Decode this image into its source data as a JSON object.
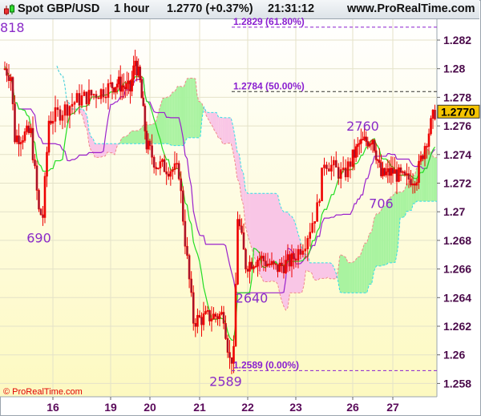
{
  "header": {
    "symbol": "Spot GBP/USD",
    "timeframe": "1 hour",
    "last": "1.2770 (+0.37%)",
    "time": "21:31:12",
    "site": "www.ProRealTime.com",
    "icon": "candlestick-icon"
  },
  "footer": {
    "copyright": "© ProRealTime.com"
  },
  "colors": {
    "candle": "#ee0000",
    "tenkan": "#22dd22",
    "kijun": "#9b22cc",
    "cloud_bull": "#a9f3a0",
    "cloud_bear": "#f9c6e6",
    "fib": "#8a1fd0",
    "price_badge": "#f5c400"
  },
  "chart_data": {
    "type": "candlestick",
    "title": "",
    "indicators": [
      "Ichimoku"
    ],
    "x_ticks": [
      "16",
      "19",
      "20",
      "21",
      "22",
      "23",
      "26",
      "27"
    ],
    "y_ticks": [
      "1.282",
      "1.28",
      "1.278",
      "1.276",
      "1.274",
      "1.272",
      "1.27",
      "1.268",
      "1.266",
      "1.264",
      "1.262",
      "1.26",
      "1.258"
    ],
    "ylim": [
      1.257,
      1.2835
    ],
    "grid": true,
    "current_price": "1.2770",
    "fib_levels": [
      {
        "price": 1.2829,
        "label": "1.2829 (61.80%)"
      },
      {
        "price": 1.2784,
        "label": "1.2784 (50.00%)"
      },
      {
        "price": 1.2589,
        "label": "1.2589 (0.00%)"
      }
    ],
    "annotations": [
      {
        "text": "818",
        "time": "14 23:00",
        "price": 1.2829
      },
      {
        "text": "690",
        "time": "15 17:00",
        "price": 1.2682
      },
      {
        "text": "2640",
        "time": "22 02:00",
        "price": 1.264
      },
      {
        "text": "2589",
        "time": "21 13:00",
        "price": 1.2589
      },
      {
        "text": "2760",
        "time": "26 06:00",
        "price": 1.276
      },
      {
        "text": "706",
        "time": "26 17:00",
        "price": 1.2706
      }
    ],
    "price_path": [
      [
        "15 00:00",
        1.28
      ],
      [
        "15 03:00",
        1.2795
      ],
      [
        "15 05:00",
        1.2752
      ],
      [
        "15 13:00",
        1.2755
      ],
      [
        "15 17:00",
        1.27
      ],
      [
        "15 19:00",
        1.2697
      ],
      [
        "15 22:00",
        1.2764
      ],
      [
        "16 10:00",
        1.2778
      ],
      [
        "16 20:00",
        1.2784
      ],
      [
        "19 04:00",
        1.279
      ],
      [
        "19 12:00",
        1.2785
      ],
      [
        "19 15:00",
        1.2806
      ],
      [
        "19 18:00",
        1.279
      ],
      [
        "19 22:00",
        1.2747
      ],
      [
        "20 03:00",
        1.2733
      ],
      [
        "20 10:00",
        1.273
      ],
      [
        "20 14:00",
        1.2728
      ],
      [
        "20 17:00",
        1.268
      ],
      [
        "20 21:00",
        1.2624
      ],
      [
        "21 06:00",
        1.2627
      ],
      [
        "21 12:00",
        1.2628
      ],
      [
        "21 15:00",
        1.2596
      ],
      [
        "21 17:00",
        1.26
      ],
      [
        "21 19:00",
        1.2697
      ],
      [
        "21 23:00",
        1.2663
      ],
      [
        "22 06:00",
        1.2668
      ],
      [
        "22 14:00",
        1.266
      ],
      [
        "22 22:00",
        1.2666
      ],
      [
        "23 04:00",
        1.268
      ],
      [
        "23 09:00",
        1.2702
      ],
      [
        "23 12:00",
        1.2736
      ],
      [
        "23 20:00",
        1.2725
      ],
      [
        "26 04:00",
        1.2747
      ],
      [
        "26 12:00",
        1.2752
      ],
      [
        "26 17:00",
        1.2725
      ],
      [
        "27 00:00",
        1.2728
      ],
      [
        "27 06:00",
        1.2722
      ],
      [
        "27 12:00",
        1.2725
      ],
      [
        "27 16:00",
        1.2747
      ],
      [
        "27 21:00",
        1.277
      ]
    ]
  }
}
